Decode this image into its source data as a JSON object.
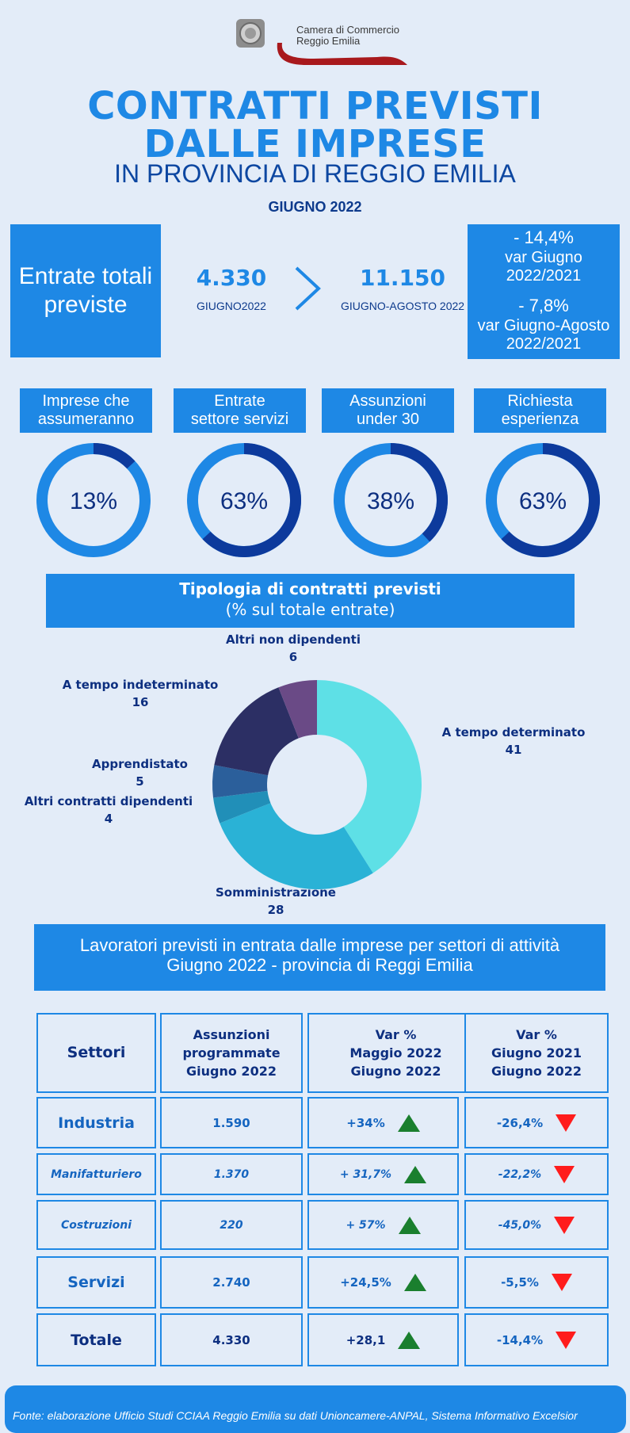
{
  "logo": {
    "line1": "Camera di Commercio",
    "line2": "Reggio Emilia"
  },
  "title": {
    "line1": "CONTRATTI PREVISTI",
    "line2": "DALLE IMPRESE",
    "line3": "IN PROVINCIA DI REGGIO EMILIA",
    "period": "GIUGNO 2022"
  },
  "entrate": {
    "label": "Entrate totali previste",
    "giugno_value": "4.330",
    "giugno_label": "GIUGNO2022",
    "jag_value": "11.150",
    "jag_label": "GIUGNO-AGOSTO 2022",
    "var1_value": "- 14,4%",
    "var1_label_a": "var Giugno",
    "var1_label_b": "2022/2021",
    "var2_value": "- 7,8%",
    "var2_label_a": "var Giugno-Agosto",
    "var2_label_b": "2022/2021"
  },
  "indicators": [
    {
      "label_a": "Imprese che",
      "label_b": "assumeranno",
      "value": "13%",
      "fraction": 0.13
    },
    {
      "label_a": "Entrate",
      "label_b": "settore servizi",
      "value": "63%",
      "fraction": 0.63
    },
    {
      "label_a": "Assunzioni",
      "label_b": "under 30",
      "value": "38%",
      "fraction": 0.38
    },
    {
      "label_a": "Richiesta",
      "label_b": "esperienza",
      "value": "63%",
      "fraction": 0.63
    }
  ],
  "colors": {
    "accent": "#1e88e5",
    "dark": "#0d3a8c",
    "up": "#1a7f2e",
    "down": "#ff1c1c"
  },
  "chart_data": {
    "type": "pie",
    "title": "Tipologia di contratti previsti",
    "subtitle": "(% sul totale entrate)",
    "categories": [
      "A tempo determinato",
      "Somministrazione",
      "Altri contratti dipendenti",
      "Apprendistato",
      "A tempo indeterminato",
      "Altri non dipendenti"
    ],
    "values": [
      41,
      28,
      4,
      5,
      16,
      6
    ],
    "colors": [
      "#5ee0e6",
      "#2ab2d6",
      "#218fb8",
      "#2b5f9b",
      "#2c2f64",
      "#6a4a86"
    ]
  },
  "settori": {
    "heading_a": "Lavoratori previsti in entrata dalle imprese per settori di attività",
    "heading_b": "Giugno 2022 - provincia di Reggi Emilia",
    "headers": {
      "c1": "Settori",
      "c2_a": "Assunzioni",
      "c2_b": "programmate",
      "c2_c": "Giugno 2022",
      "c3_a": "Var %",
      "c3_b": "Maggio  2022",
      "c3_c": "Giugno 2022",
      "c4_a": "Var %",
      "c4_b": "Giugno 2021",
      "c4_c": "Giugno 2022"
    },
    "rows": [
      {
        "settore": "Industria",
        "assunzioni": "1.590",
        "var_maggio": "+34%",
        "var_giugno": "-26,4%"
      },
      {
        "settore": "Manifatturiero",
        "assunzioni": "1.370",
        "var_maggio": "+ 31,7%",
        "var_giugno": "-22,2%"
      },
      {
        "settore": "Costruzioni",
        "assunzioni": "220",
        "var_maggio": "+ 57%",
        "var_giugno": "-45,0%"
      },
      {
        "settore": "Servizi",
        "assunzioni": "2.740",
        "var_maggio": "+24,5%",
        "var_giugno": "-5,5%"
      },
      {
        "settore": "Totale",
        "assunzioni": "4.330",
        "var_maggio": "+28,1",
        "var_giugno": "-14,4%"
      }
    ]
  },
  "footer": {
    "source": "Fonte: elaborazione Ufficio Studi CCIAA Reggio Emilia su dati Unioncamere-ANPAL, Sistema Informativo Excelsior"
  }
}
